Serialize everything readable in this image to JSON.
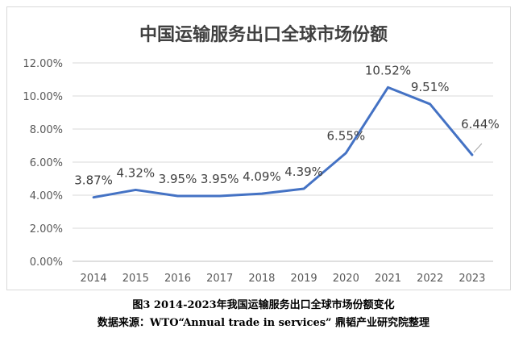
{
  "chart_data": {
    "type": "line",
    "title": "中国运输服务出口全球市场份额",
    "categories": [
      "2014",
      "2015",
      "2016",
      "2017",
      "2018",
      "2019",
      "2020",
      "2021",
      "2022",
      "2023"
    ],
    "series": [
      {
        "values": [
          3.87,
          4.32,
          3.95,
          3.95,
          4.09,
          4.39,
          6.55,
          10.52,
          9.51,
          6.44
        ]
      }
    ],
    "data_labels": [
      "3.87%",
      "4.32%",
      "3.95%",
      "3.95%",
      "4.09%",
      "4.39%",
      "6.55%",
      "10.52%",
      "9.51%",
      "6.44%"
    ],
    "y_ticks": [
      "0.00%",
      "2.00%",
      "4.00%",
      "6.00%",
      "8.00%",
      "10.00%",
      "12.00%"
    ],
    "ylim": [
      0,
      12
    ],
    "grid": true,
    "line_color": "#4472C4"
  },
  "captions": {
    "figure": "图3 2014-2023年我国运输服务出口全球市场份额变化",
    "source": "数据来源：WTO“Annual trade in services” 鼎韬产业研究院整理"
  }
}
